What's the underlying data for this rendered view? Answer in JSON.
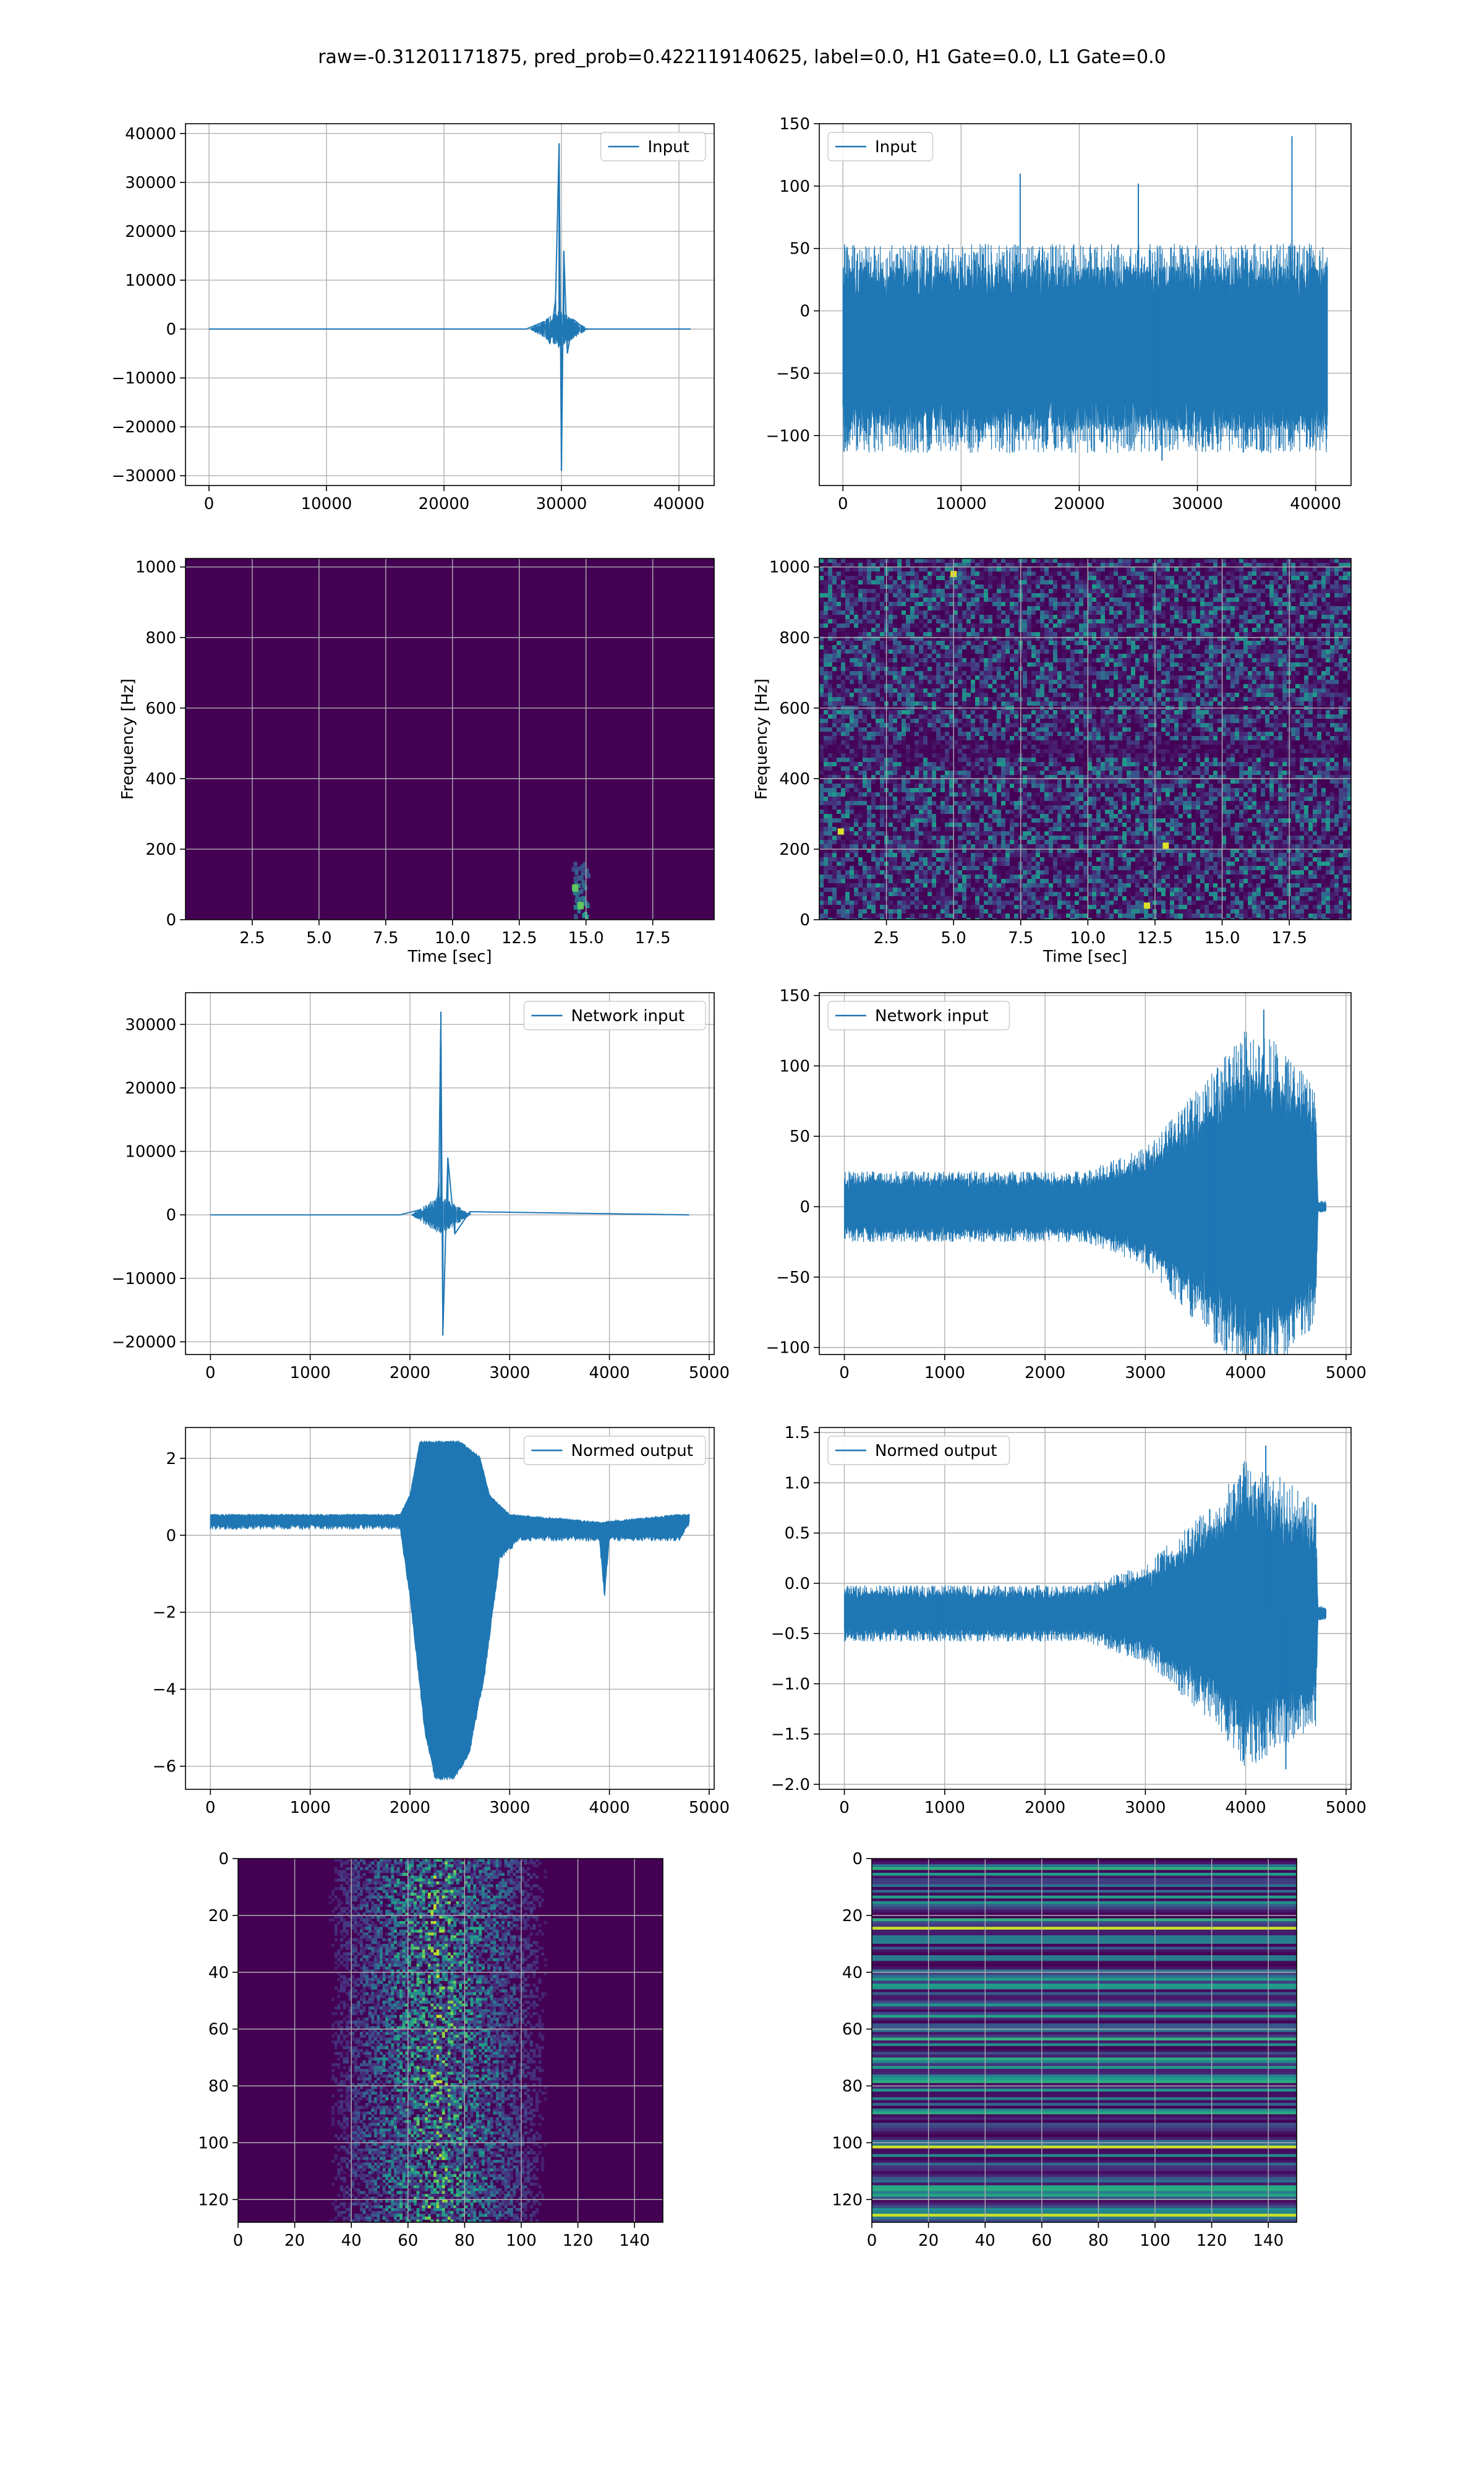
{
  "figure": {
    "suptitle": "raw=-0.31201171875, pred_prob=0.422119140625, label=0.0, H1 Gate=0.0, L1 Gate=0.0",
    "line_color": "#1f77b4",
    "grid_color": "#b0b0b0"
  },
  "chart_data": [
    {
      "type": "line",
      "legend": "Input",
      "legend_position": "top-right",
      "grid": true,
      "xlim": [
        -2000,
        43000
      ],
      "ylim": [
        -32000,
        42000
      ],
      "xticks": [
        0,
        10000,
        20000,
        30000,
        40000
      ],
      "yticks": [
        -30000,
        -20000,
        -10000,
        0,
        10000,
        20000,
        30000,
        40000
      ],
      "xtick_labels": [
        "0",
        "10000",
        "20000",
        "30000",
        "40000"
      ],
      "ytick_labels": [
        "−30000",
        "−20000",
        "−10000",
        "0",
        "10000",
        "20000",
        "30000",
        "40000"
      ],
      "series": [
        {
          "name": "Input",
          "x": [
            0,
            27000,
            28500,
            29000,
            29500,
            29800,
            30000,
            30200,
            30500,
            31000,
            32000,
            41000
          ],
          "y": [
            0,
            0,
            1500,
            -3000,
            6000,
            38000,
            -29000,
            16000,
            -5000,
            2000,
            0,
            0
          ]
        }
      ]
    },
    {
      "type": "line",
      "legend": "Input",
      "legend_position": "top-left",
      "grid": true,
      "xlim": [
        -2000,
        43000
      ],
      "ylim": [
        -140,
        150
      ],
      "xticks": [
        0,
        10000,
        20000,
        30000,
        40000
      ],
      "yticks": [
        -100,
        -50,
        0,
        50,
        100,
        150
      ],
      "xtick_labels": [
        "0",
        "10000",
        "20000",
        "30000",
        "40000"
      ],
      "ytick_labels": [
        "−100",
        "−50",
        "0",
        "50",
        "100",
        "150"
      ],
      "series": [
        {
          "name": "Input",
          "x": [
            0,
            41000
          ],
          "y": [
            -30,
            30
          ],
          "envelope": [
            [
              0,
              60
            ],
            [
              10000,
              60
            ],
            [
              20000,
              60
            ],
            [
              30000,
              60
            ],
            [
              41000,
              60
            ]
          ]
        }
      ]
    },
    {
      "type": "heatmap",
      "grid": true,
      "xlabel": "Time [sec]",
      "ylabel": "Frequency [Hz]",
      "xlim": [
        0,
        19.8
      ],
      "ylim": [
        0,
        1024
      ],
      "xticks": [
        2.5,
        5.0,
        7.5,
        10.0,
        12.5,
        15.0,
        17.5
      ],
      "yticks": [
        0,
        200,
        400,
        600,
        800,
        1000
      ],
      "xtick_labels": [
        "2.5",
        "5.0",
        "7.5",
        "10.0",
        "12.5",
        "15.0",
        "17.5"
      ],
      "ytick_labels": [
        "0",
        "200",
        "400",
        "600",
        "800",
        "1000"
      ],
      "hotspots": [
        [
          14.8,
          40
        ],
        [
          14.6,
          90
        ]
      ]
    },
    {
      "type": "heatmap",
      "grid": true,
      "xlabel": "Time [sec]",
      "ylabel": "Frequency [Hz]",
      "xlim": [
        0,
        19.8
      ],
      "ylim": [
        0,
        1024
      ],
      "xticks": [
        2.5,
        5.0,
        7.5,
        10.0,
        12.5,
        15.0,
        17.5
      ],
      "yticks": [
        0,
        200,
        400,
        600,
        800,
        1000
      ],
      "xtick_labels": [
        "2.5",
        "5.0",
        "7.5",
        "10.0",
        "12.5",
        "15.0",
        "17.5"
      ],
      "ytick_labels": [
        "0",
        "200",
        "400",
        "600",
        "800",
        "1000"
      ],
      "hotspots": [
        [
          0.8,
          250
        ],
        [
          12.9,
          210
        ],
        [
          12.2,
          40
        ],
        [
          5.0,
          980
        ]
      ]
    },
    {
      "type": "line",
      "legend": "Network input",
      "legend_position": "top-right",
      "grid": true,
      "xlim": [
        -250,
        5050
      ],
      "ylim": [
        -22000,
        35000
      ],
      "xticks": [
        0,
        1000,
        2000,
        3000,
        4000,
        5000
      ],
      "yticks": [
        -20000,
        -10000,
        0,
        10000,
        20000,
        30000
      ],
      "xtick_labels": [
        "0",
        "1000",
        "2000",
        "3000",
        "4000",
        "5000"
      ],
      "ytick_labels": [
        "−20000",
        "−10000",
        "0",
        "10000",
        "20000",
        "30000"
      ],
      "series": [
        {
          "name": "Network input",
          "x": [
            0,
            1900,
            2100,
            2250,
            2290,
            2310,
            2330,
            2380,
            2450,
            2600,
            4800
          ],
          "y": [
            0,
            0,
            800,
            -1500,
            5000,
            32000,
            -19000,
            9000,
            -3000,
            500,
            0
          ]
        }
      ]
    },
    {
      "type": "line",
      "legend": "Network input",
      "legend_position": "top-left",
      "grid": true,
      "xlim": [
        -250,
        5050
      ],
      "ylim": [
        -105,
        152
      ],
      "xticks": [
        0,
        1000,
        2000,
        3000,
        4000,
        5000
      ],
      "yticks": [
        -100,
        -50,
        0,
        50,
        100,
        150
      ],
      "xtick_labels": [
        "0",
        "1000",
        "2000",
        "3000",
        "4000",
        "5000"
      ],
      "ytick_labels": [
        "−100",
        "−50",
        "0",
        "50",
        "100",
        "150"
      ],
      "series": [
        {
          "name": "Network input",
          "x": [
            0,
            2400,
            3000,
            3700,
            4000,
            4200,
            4700,
            4800
          ],
          "y": [
            0,
            0,
            0,
            0,
            0,
            140,
            0,
            0
          ],
          "envelope": [
            [
              0,
              18
            ],
            [
              2400,
              18
            ],
            [
              3000,
              30
            ],
            [
              3700,
              70
            ],
            [
              4000,
              90
            ],
            [
              4300,
              85
            ],
            [
              4700,
              60
            ],
            [
              4720,
              3
            ],
            [
              4800,
              3
            ]
          ]
        }
      ]
    },
    {
      "type": "line",
      "legend": "Normed output",
      "legend_position": "top-right",
      "grid": true,
      "xlim": [
        -250,
        5050
      ],
      "ylim": [
        -6.6,
        2.8
      ],
      "xticks": [
        0,
        1000,
        2000,
        3000,
        4000,
        5000
      ],
      "yticks": [
        -6,
        -4,
        -2,
        0,
        2
      ],
      "xtick_labels": [
        "0",
        "1000",
        "2000",
        "3000",
        "4000",
        "5000"
      ],
      "ytick_labels": [
        "−6",
        "−4",
        "−2",
        "0",
        "2"
      ],
      "series": [
        {
          "name": "Normed output",
          "x": [
            0,
            1900,
            2000,
            2100,
            2300,
            2500,
            2700,
            2800,
            3000,
            3500,
            3900,
            4700,
            4800
          ],
          "y": [
            0.5,
            0.5,
            1.0,
            2.4,
            2.4,
            2.4,
            2.0,
            1.0,
            0.5,
            0.4,
            0.3,
            0.5,
            0.5
          ],
          "lower": [
            [
              0,
              0.3
            ],
            [
              1900,
              0.3
            ],
            [
              2000,
              -1.5
            ],
            [
              2150,
              -5.0
            ],
            [
              2250,
              -6.2
            ],
            [
              2450,
              -6.2
            ],
            [
              2600,
              -5.5
            ],
            [
              2750,
              -3.5
            ],
            [
              2900,
              -0.5
            ],
            [
              3100,
              0.0
            ],
            [
              3900,
              0.0
            ],
            [
              3950,
              -1.5
            ],
            [
              4000,
              0.0
            ],
            [
              4700,
              0.0
            ],
            [
              4800,
              0.4
            ]
          ]
        }
      ]
    },
    {
      "type": "line",
      "legend": "Normed output",
      "legend_position": "top-left",
      "grid": true,
      "xlim": [
        -250,
        5050
      ],
      "ylim": [
        -2.05,
        1.55
      ],
      "xticks": [
        0,
        1000,
        2000,
        3000,
        4000,
        5000
      ],
      "yticks": [
        -2.0,
        -1.5,
        -1.0,
        -0.5,
        0.0,
        0.5,
        1.0,
        1.5
      ],
      "xtick_labels": [
        "0",
        "1000",
        "2000",
        "3000",
        "4000",
        "5000"
      ],
      "ytick_labels": [
        "−2.0",
        "−1.5",
        "−1.0",
        "−0.5",
        "0.0",
        "0.5",
        "1.0",
        "1.5"
      ],
      "series": [
        {
          "name": "Normed output",
          "x": [
            0,
            4800
          ],
          "y": [
            -0.3,
            -0.3
          ],
          "envelope": [
            [
              0,
              0.2
            ],
            [
              2400,
              0.2
            ],
            [
              3000,
              0.35
            ],
            [
              3700,
              0.8
            ],
            [
              4000,
              1.1
            ],
            [
              4300,
              1.0
            ],
            [
              4700,
              0.8
            ],
            [
              4720,
              0.05
            ],
            [
              4800,
              0.05
            ]
          ]
        }
      ]
    },
    {
      "type": "heatmap",
      "grid": true,
      "xlim": [
        0,
        150
      ],
      "ylim": [
        128,
        0
      ],
      "xticks": [
        0,
        20,
        40,
        60,
        80,
        100,
        120,
        140
      ],
      "yticks": [
        0,
        20,
        40,
        60,
        80,
        100,
        120
      ],
      "xtick_labels": [
        "0",
        "20",
        "40",
        "60",
        "80",
        "100",
        "120",
        "140"
      ],
      "ytick_labels": [
        "0",
        "20",
        "40",
        "60",
        "80",
        "100",
        "120"
      ],
      "active_band": [
        30,
        110
      ]
    },
    {
      "type": "heatmap",
      "grid": true,
      "xlim": [
        0,
        150
      ],
      "ylim": [
        128,
        0
      ],
      "xticks": [
        0,
        20,
        40,
        60,
        80,
        100,
        120,
        140
      ],
      "yticks": [
        0,
        20,
        40,
        60,
        80,
        100,
        120
      ],
      "xtick_labels": [
        "0",
        "20",
        "40",
        "60",
        "80",
        "100",
        "120",
        "140"
      ],
      "ytick_labels": [
        "0",
        "20",
        "40",
        "60",
        "80",
        "100",
        "120"
      ],
      "bright_rows": [
        24,
        101,
        125
      ]
    }
  ]
}
